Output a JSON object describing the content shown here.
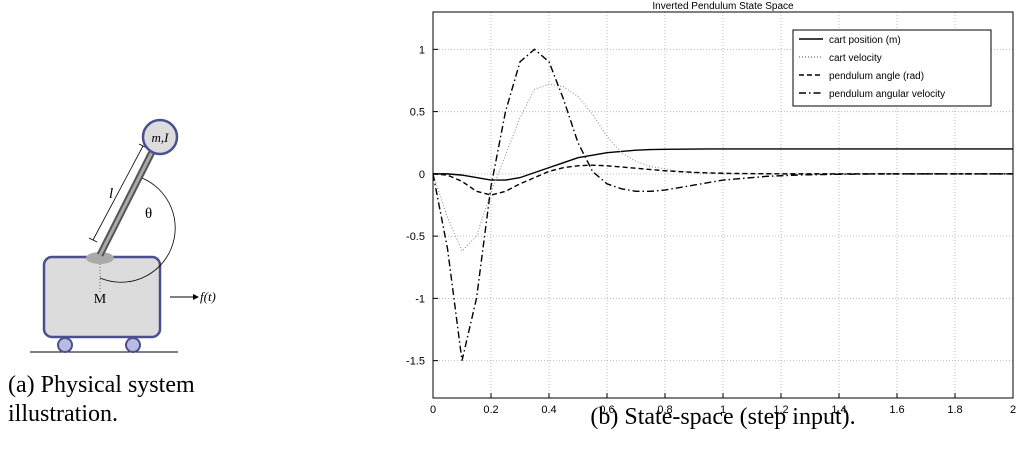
{
  "diagram": {
    "pendulum_label": "m,I",
    "length_label": "l",
    "angle_label": "θ",
    "cart_label": "M",
    "force_label": "f(t)",
    "caption_line1": "(a) Physical system",
    "caption_line2": "illustration."
  },
  "chart_caption": "(b) State-space (step input).",
  "chart_data": {
    "type": "line",
    "title": "Inverted Pendulum State Space",
    "x": [
      0,
      0.05,
      0.1,
      0.15,
      0.2,
      0.25,
      0.3,
      0.35,
      0.4,
      0.45,
      0.5,
      0.55,
      0.6,
      0.65,
      0.7,
      0.75,
      0.8,
      0.85,
      0.9,
      0.95,
      1,
      1.05,
      1.1,
      1.15,
      1.2,
      1.25,
      1.3,
      1.35,
      1.4,
      1.45,
      1.5,
      1.55,
      1.6,
      1.65,
      1.7,
      1.75,
      1.8,
      1.85,
      1.9,
      1.95,
      2
    ],
    "series": [
      {
        "name": "cart position (m)",
        "color": "#000000",
        "dash": "solid",
        "values": [
          0,
          0,
          -0.01,
          -0.03,
          -0.05,
          -0.05,
          -0.03,
          0.01,
          0.05,
          0.09,
          0.13,
          0.15,
          0.17,
          0.18,
          0.19,
          0.195,
          0.197,
          0.198,
          0.199,
          0.2,
          0.2,
          0.2,
          0.2,
          0.2,
          0.2,
          0.2,
          0.2,
          0.2,
          0.2,
          0.2,
          0.2,
          0.2,
          0.2,
          0.2,
          0.2,
          0.2,
          0.2,
          0.2,
          0.2,
          0.2,
          0.2
        ]
      },
      {
        "name": "cart velocity",
        "color": "#888888",
        "dash": "dotted",
        "values": [
          0,
          -0.35,
          -0.62,
          -0.5,
          -0.15,
          0.15,
          0.45,
          0.68,
          0.72,
          0.7,
          0.62,
          0.48,
          0.3,
          0.17,
          0.1,
          0.06,
          0.04,
          0.02,
          0.01,
          0.005,
          0,
          0,
          0,
          0,
          0,
          0,
          0,
          0,
          0,
          0,
          0,
          0,
          0,
          0,
          0,
          0,
          0,
          0,
          0,
          0,
          0
        ]
      },
      {
        "name": "pendulum angle (rad)",
        "color": "#000000",
        "dash": "dashed",
        "values": [
          0,
          -0.01,
          -0.06,
          -0.14,
          -0.17,
          -0.14,
          -0.08,
          -0.03,
          0.02,
          0.05,
          0.065,
          0.07,
          0.065,
          0.055,
          0.045,
          0.035,
          0.025,
          0.018,
          0.012,
          0.008,
          0.005,
          0.003,
          0.002,
          0.001,
          0,
          0,
          0,
          0,
          0,
          0,
          0,
          0,
          0,
          0,
          0,
          0,
          0,
          0,
          0,
          0,
          0
        ]
      },
      {
        "name": "pendulum angular velocity",
        "color": "#000000",
        "dash": "dashdot",
        "values": [
          0,
          -0.6,
          -1.5,
          -1.0,
          -0.1,
          0.5,
          0.9,
          1.0,
          0.9,
          0.6,
          0.25,
          0.02,
          -0.08,
          -0.12,
          -0.14,
          -0.14,
          -0.13,
          -0.11,
          -0.09,
          -0.07,
          -0.05,
          -0.04,
          -0.03,
          -0.02,
          -0.015,
          -0.01,
          -0.007,
          -0.005,
          -0.003,
          -0.002,
          -0.001,
          0,
          0,
          0,
          0,
          0,
          0,
          0,
          0,
          0,
          0
        ]
      }
    ],
    "xlim": [
      0,
      2
    ],
    "xticks": [
      0,
      0.2,
      0.4,
      0.6,
      0.8,
      1,
      1.2,
      1.4,
      1.6,
      1.8,
      2
    ],
    "ylim": [
      -1.8,
      1.3
    ],
    "yticks": [
      -1.5,
      -1,
      -0.5,
      0,
      0.5,
      1
    ],
    "grid": true,
    "legend": "upper right"
  }
}
